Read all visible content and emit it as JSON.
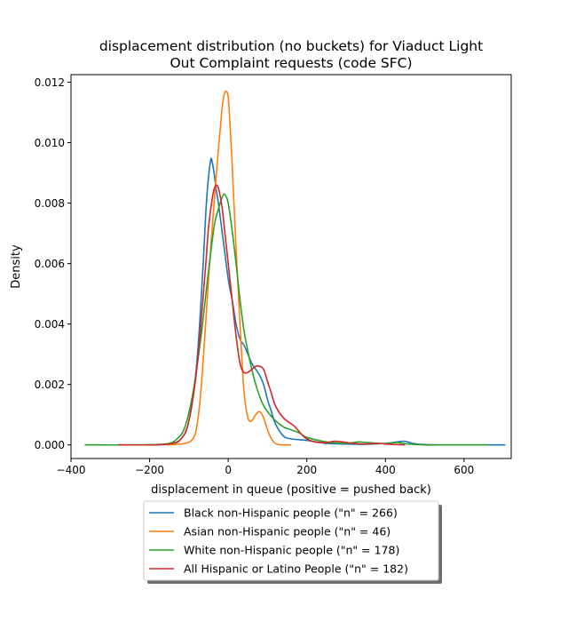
{
  "chart_data": {
    "type": "line",
    "title": "displacement distribution (no buckets)  for Viaduct Light Out Complaint requests (code SFC)",
    "title_lines": [
      "displacement distribution (no buckets)  for Viaduct Light",
      "Out Complaint requests (code SFC)"
    ],
    "xlabel": "displacement in queue (positive = pushed back)",
    "ylabel": "Density",
    "xlim": [
      -400,
      720
    ],
    "ylim": [
      -0.00045,
      0.01225
    ],
    "x_ticks": [
      -400,
      -200,
      0,
      200,
      400,
      600
    ],
    "x_tick_labels": [
      "−400",
      "−200",
      "0",
      "200",
      "400",
      "600"
    ],
    "y_ticks": [
      0.0,
      0.002,
      0.004,
      0.006,
      0.008,
      0.01,
      0.012
    ],
    "y_tick_labels": [
      "0.000",
      "0.002",
      "0.004",
      "0.006",
      "0.008",
      "0.010",
      "0.012"
    ],
    "grid": false,
    "legend_position": "below plot",
    "series": [
      {
        "name": "Black non-Hispanic people (\"n\" = 266)",
        "color": "#1f77b4",
        "x": [
          -365,
          -250,
          -150,
          -120,
          -100,
          -80,
          -65,
          -55,
          -45,
          -40,
          -35,
          -30,
          -25,
          -20,
          -10,
          0,
          10,
          20,
          30,
          40,
          50,
          60,
          70,
          80,
          90,
          100,
          110,
          120,
          140,
          160,
          200,
          250,
          300,
          350,
          400,
          430,
          450,
          470,
          500,
          550,
          600,
          650,
          705
        ],
        "y": [
          0.0,
          0.0,
          3e-05,
          0.0002,
          0.0008,
          0.0027,
          0.0057,
          0.0081,
          0.0094,
          0.0093,
          0.0089,
          0.0084,
          0.008,
          0.0075,
          0.0065,
          0.0055,
          0.0048,
          0.004,
          0.0035,
          0.0033,
          0.003,
          0.0027,
          0.0025,
          0.0023,
          0.002,
          0.0015,
          0.0011,
          0.0007,
          0.0003,
          0.0002,
          0.00015,
          5e-05,
          3e-05,
          2e-05,
          5e-05,
          0.0001,
          0.00012,
          5e-05,
          1e-05,
          0.0,
          0.0,
          0.0,
          0.0
        ]
      },
      {
        "name": "Asian non-Hispanic people (\"n\" = 46)",
        "color": "#ff7f0e",
        "x": [
          -155,
          -110,
          -90,
          -80,
          -70,
          -60,
          -50,
          -40,
          -30,
          -20,
          -15,
          -10,
          -5,
          0,
          5,
          10,
          20,
          30,
          40,
          50,
          60,
          70,
          80,
          90,
          100,
          110,
          120,
          130,
          140,
          160
        ],
        "y": [
          0.0,
          5e-05,
          0.0002,
          0.0006,
          0.0017,
          0.0035,
          0.0055,
          0.0073,
          0.009,
          0.0105,
          0.0112,
          0.0116,
          0.0117,
          0.0115,
          0.0105,
          0.0093,
          0.0065,
          0.004,
          0.0018,
          0.0009,
          0.0008,
          0.001,
          0.0011,
          0.0009,
          0.0005,
          0.0002,
          5e-05,
          1e-05,
          0.0,
          0.0
        ]
      },
      {
        "name": "White non-Hispanic people (\"n\" = 178)",
        "color": "#2ca02c",
        "x": [
          -365,
          -250,
          -160,
          -130,
          -110,
          -90,
          -70,
          -55,
          -45,
          -35,
          -25,
          -15,
          -10,
          -5,
          0,
          10,
          20,
          30,
          40,
          50,
          60,
          70,
          80,
          90,
          100,
          120,
          140,
          160,
          180,
          200,
          250,
          300,
          330,
          350,
          400,
          430,
          450,
          500,
          550,
          600,
          660
        ],
        "y": [
          0.0,
          0.0,
          3e-05,
          0.0002,
          0.0006,
          0.0017,
          0.0035,
          0.0052,
          0.0063,
          0.0073,
          0.0078,
          0.0082,
          0.0083,
          0.0082,
          0.008,
          0.0071,
          0.006,
          0.0048,
          0.0038,
          0.0031,
          0.0025,
          0.002,
          0.0016,
          0.0013,
          0.0011,
          0.0008,
          0.0006,
          0.0005,
          0.0004,
          0.00025,
          0.0001,
          5e-05,
          0.0001,
          8e-05,
          4e-05,
          8e-05,
          4e-05,
          0.0,
          0.0,
          0.0,
          0.0
        ]
      },
      {
        "name": "All Hispanic or Latino People (\"n\" = 182)",
        "color": "#d62728",
        "x": [
          -280,
          -200,
          -150,
          -120,
          -100,
          -80,
          -60,
          -50,
          -40,
          -35,
          -30,
          -25,
          -20,
          -15,
          -10,
          0,
          10,
          20,
          30,
          40,
          50,
          60,
          70,
          80,
          90,
          100,
          110,
          120,
          140,
          160,
          170,
          190,
          200,
          220,
          250,
          270,
          290,
          320,
          350,
          380,
          410,
          430,
          450
        ],
        "y": [
          0.0,
          0.0,
          3e-05,
          0.0002,
          0.0008,
          0.0025,
          0.0055,
          0.0072,
          0.0082,
          0.0085,
          0.0086,
          0.0085,
          0.0082,
          0.0078,
          0.0072,
          0.006,
          0.0048,
          0.0036,
          0.0027,
          0.0024,
          0.0024,
          0.0025,
          0.0026,
          0.0026,
          0.0025,
          0.0021,
          0.0017,
          0.0013,
          0.0009,
          0.0007,
          0.0006,
          0.0003,
          0.0002,
          0.0001,
          8e-05,
          0.00012,
          0.0001,
          5e-05,
          3e-05,
          5e-05,
          2e-05,
          1e-05,
          0.0
        ]
      }
    ]
  }
}
